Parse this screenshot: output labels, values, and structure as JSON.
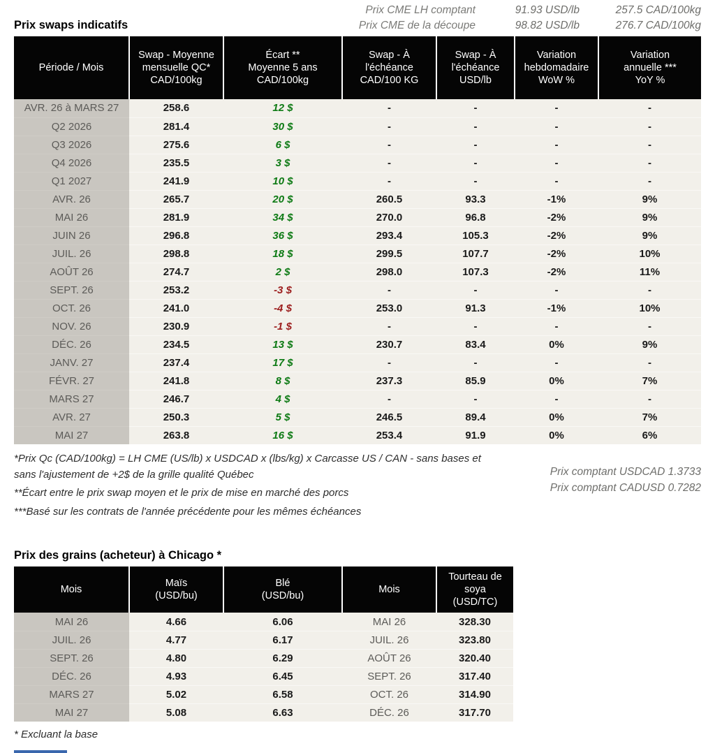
{
  "colors": {
    "green": "#0d7a14",
    "red": "#9c1d1d",
    "header_bg": "#050505",
    "period_col_bg": "#c9c6c0",
    "body_bg": "#f2f0ea",
    "accent_blue": "#3a67ad"
  },
  "top_spot": [
    {
      "label": "Prix CME LH comptant",
      "usd": "91.93 USD/lb",
      "cad": "257.5 CAD/100kg"
    },
    {
      "label": "Prix CME de la découpe",
      "usd": "98.82 USD/lb",
      "cad": "276.7 CAD/100kg"
    }
  ],
  "swaps_section": {
    "title": "Prix swaps indicatifs"
  },
  "swaps_table": {
    "headers": [
      "Période / Mois",
      "Swap - Moyenne\nmensuelle QC*\nCAD/100kg",
      "Écart **\nMoyenne 5 ans\nCAD/100kg",
      "Swap - À\nl'échéance\nCAD/100 KG",
      "Swap - À\nl'échéance\nUSD/lb",
      "Variation\nhebdomadaire\nWoW %",
      "Variation\nannuelle ***\nYoY %"
    ],
    "rows": [
      {
        "period": "AVR. 26 à  MARS 27",
        "avg": "258.6",
        "ecart": "12 $",
        "ecart_color": "green",
        "cad": "-",
        "usd": "-",
        "wow": "-",
        "wow_color": "dark",
        "yoy": "-",
        "yoy_color": "dark"
      },
      {
        "period": "Q2 2026",
        "avg": "281.4",
        "ecart": "30 $",
        "ecart_color": "green",
        "cad": "-",
        "usd": "-",
        "wow": "-",
        "wow_color": "dark",
        "yoy": "-",
        "yoy_color": "dark"
      },
      {
        "period": "Q3 2026",
        "avg": "275.6",
        "ecart": "6 $",
        "ecart_color": "green",
        "cad": "-",
        "usd": "-",
        "wow": "-",
        "wow_color": "dark",
        "yoy": "-",
        "yoy_color": "dark"
      },
      {
        "period": "Q4 2026",
        "avg": "235.5",
        "ecart": "3 $",
        "ecart_color": "green",
        "cad": "-",
        "usd": "-",
        "wow": "-",
        "wow_color": "dark",
        "yoy": "-",
        "yoy_color": "dark"
      },
      {
        "period": "Q1 2027",
        "avg": "241.9",
        "ecart": "10 $",
        "ecart_color": "green",
        "cad": "-",
        "usd": "-",
        "wow": "-",
        "wow_color": "dark",
        "yoy": "-",
        "yoy_color": "dark"
      },
      {
        "period": "AVR. 26",
        "avg": "265.7",
        "ecart": "20 $",
        "ecart_color": "green",
        "cad": "260.5",
        "usd": "93.3",
        "wow": "-1%",
        "wow_color": "red",
        "yoy": "9%",
        "yoy_color": "green"
      },
      {
        "period": "MAI 26",
        "avg": "281.9",
        "ecart": "34 $",
        "ecart_color": "green",
        "cad": "270.0",
        "usd": "96.8",
        "wow": "-2%",
        "wow_color": "red",
        "yoy": "9%",
        "yoy_color": "green"
      },
      {
        "period": "JUIN 26",
        "avg": "296.8",
        "ecart": "36 $",
        "ecart_color": "green",
        "cad": "293.4",
        "usd": "105.3",
        "wow": "-2%",
        "wow_color": "red",
        "yoy": "9%",
        "yoy_color": "green"
      },
      {
        "period": "JUIL. 26",
        "avg": "298.8",
        "ecart": "18 $",
        "ecart_color": "green",
        "cad": "299.5",
        "usd": "107.7",
        "wow": "-2%",
        "wow_color": "red",
        "yoy": "10%",
        "yoy_color": "green"
      },
      {
        "period": "AOÛT 26",
        "avg": "274.7",
        "ecart": "2 $",
        "ecart_color": "green",
        "cad": "298.0",
        "usd": "107.3",
        "wow": "-2%",
        "wow_color": "red",
        "yoy": "11%",
        "yoy_color": "green"
      },
      {
        "period": "SEPT. 26",
        "avg": "253.2",
        "ecart": "-3 $",
        "ecart_color": "red",
        "cad": "-",
        "usd": "-",
        "wow": "-",
        "wow_color": "red",
        "yoy": "-",
        "yoy_color": "green"
      },
      {
        "period": "OCT. 26",
        "avg": "241.0",
        "ecart": "-4 $",
        "ecart_color": "red",
        "cad": "253.0",
        "usd": "91.3",
        "wow": "-1%",
        "wow_color": "red",
        "yoy": "10%",
        "yoy_color": "green"
      },
      {
        "period": "NOV. 26",
        "avg": "230.9",
        "ecart": "-1 $",
        "ecart_color": "red",
        "cad": "-",
        "usd": "-",
        "wow": "-",
        "wow_color": "red",
        "yoy": "-",
        "yoy_color": "green"
      },
      {
        "period": "DÉC. 26",
        "avg": "234.5",
        "ecart": "13 $",
        "ecart_color": "green",
        "cad": "230.7",
        "usd": "83.4",
        "wow": "0%",
        "wow_color": "red",
        "yoy": "9%",
        "yoy_color": "green"
      },
      {
        "period": "JANV. 27",
        "avg": "237.4",
        "ecart": "17 $",
        "ecart_color": "green",
        "cad": "-",
        "usd": "-",
        "wow": "-",
        "wow_color": "dark",
        "yoy": "-",
        "yoy_color": "dark"
      },
      {
        "period": "FÉVR. 27",
        "avg": "241.8",
        "ecart": "8 $",
        "ecart_color": "green",
        "cad": "237.3",
        "usd": "85.9",
        "wow": "0%",
        "wow_color": "dark",
        "yoy": "7%",
        "yoy_color": "green"
      },
      {
        "period": "MARS 27",
        "avg": "246.7",
        "ecart": "4 $",
        "ecart_color": "green",
        "cad": "-",
        "usd": "-",
        "wow": "-",
        "wow_color": "dark",
        "yoy": "-",
        "yoy_color": "dark"
      },
      {
        "period": "AVR. 27",
        "avg": "250.3",
        "ecart": "5 $",
        "ecart_color": "green",
        "cad": "246.5",
        "usd": "89.4",
        "wow": "0%",
        "wow_color": "green",
        "yoy": "7%",
        "yoy_color": "green"
      },
      {
        "period": "MAI 27",
        "avg": "263.8",
        "ecart": "16 $",
        "ecart_color": "green",
        "cad": "253.4",
        "usd": "91.9",
        "wow": "0%",
        "wow_color": "green",
        "yoy": "6%",
        "yoy_color": "green"
      }
    ]
  },
  "footnotes": {
    "fn1": "*Prix Qc (CAD/100kg) = LH CME (US/lb) x USDCAD x (lbs/kg) x Carcasse US / CAN - sans bases et\nsans l'ajustement de +2$ de la grille qualité Québec",
    "fn2": "**Écart entre le prix swap moyen et le prix de mise en marché des porcs",
    "fn3": "***Basé sur les contrats de l'année précédente pour les mêmes échéances",
    "usdcad": "Prix comptant USDCAD 1.3733",
    "cadusd": "Prix comptant CADUSD 0.7282"
  },
  "grains_section": {
    "title": "Prix des grains (acheteur) à Chicago *",
    "note": "* Excluant la base"
  },
  "grains_table": {
    "headers": [
      "Mois",
      "Maïs\n(USD/bu)",
      "Blé\n(USD/bu)",
      "Mois",
      "Tourteau de\nsoya\n(USD/TC)"
    ],
    "rows": [
      {
        "month1": "MAI 26",
        "corn": "4.66",
        "wheat": "6.06",
        "month2": "MAI 26",
        "soy": "328.30"
      },
      {
        "month1": "JUIL. 26",
        "corn": "4.77",
        "wheat": "6.17",
        "month2": "JUIL. 26",
        "soy": "323.80"
      },
      {
        "month1": "SEPT. 26",
        "corn": "4.80",
        "wheat": "6.29",
        "month2": "AOÛT 26",
        "soy": "320.40"
      },
      {
        "month1": "DÉC. 26",
        "corn": "4.93",
        "wheat": "6.45",
        "month2": "SEPT. 26",
        "soy": "317.40"
      },
      {
        "month1": "MARS 27",
        "corn": "5.02",
        "wheat": "6.58",
        "month2": "OCT. 26",
        "soy": "314.90"
      },
      {
        "month1": "MAI 27",
        "corn": "5.08",
        "wheat": "6.63",
        "month2": "DÉC. 26",
        "soy": "317.70"
      }
    ]
  }
}
